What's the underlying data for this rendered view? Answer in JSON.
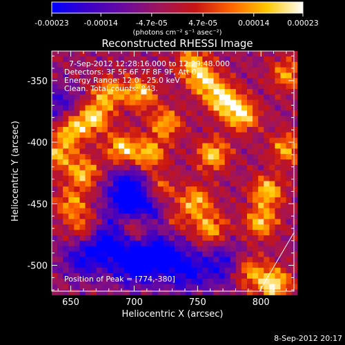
{
  "colorbar": {
    "tick_labels": [
      "-0.00023",
      "-0.00014",
      "-4.7e-05",
      "4.7e-05",
      "0.00014",
      "0.00023"
    ],
    "tick_values": [
      -0.00023,
      -0.00014,
      -4.7e-05,
      4.7e-05,
      0.00014,
      0.00023
    ],
    "range": [
      -0.00023,
      0.00023
    ],
    "units": "(photons cm⁻² s⁻¹ asec⁻²)",
    "colormap": [
      "#0000ff",
      "#3c00c8",
      "#6a0aa0",
      "#a0145a",
      "#c81414",
      "#ff6400",
      "#ffc800",
      "#ffffff"
    ]
  },
  "plot": {
    "title": "Reconstructed RHESSI Image",
    "xlabel": "Heliocentric X (arcsec)",
    "ylabel": "Heliocentric Y (arcsec)",
    "xlim": [
      635,
      826
    ],
    "ylim": [
      -521,
      -326
    ],
    "xticks": [
      650,
      700,
      750,
      800
    ],
    "yticks": [
      -350,
      -400,
      -450,
      -500
    ]
  },
  "annotations": {
    "time_range": "7-Sep-2012 12:28:16.000 to 12:29:48.000",
    "detectors": "Detectors: 3F 5F 6F 7F 8F 9F, Att 0",
    "energy": "Energy Range: 12.0 - 25.0 keV",
    "clean": "Clean.   Total counts: 843.",
    "peak": "Position of Peak = [774,-380]"
  },
  "footer": {
    "timestamp": "8-Sep-2012 20:17"
  },
  "chart_data": {
    "type": "heatmap",
    "title": "Reconstructed RHESSI Image",
    "xlabel": "Heliocentric X (arcsec)",
    "ylabel": "Heliocentric Y (arcsec)",
    "xlim": [
      635,
      826
    ],
    "ylim": [
      -521,
      -326
    ],
    "peak": [
      774,
      -380
    ],
    "value_range": [
      -0.00023,
      0.00023
    ],
    "hot_regions": [
      {
        "x": 770,
        "y": -365,
        "level": 1.0
      },
      {
        "x": 785,
        "y": -378,
        "level": 0.95
      },
      {
        "x": 762,
        "y": -410,
        "level": 0.85
      },
      {
        "x": 755,
        "y": -350,
        "level": 0.8
      },
      {
        "x": 668,
        "y": -380,
        "level": 0.9
      },
      {
        "x": 650,
        "y": -390,
        "level": 0.85
      },
      {
        "x": 705,
        "y": -360,
        "level": 0.8
      },
      {
        "x": 680,
        "y": -360,
        "level": 0.75
      },
      {
        "x": 690,
        "y": -405,
        "level": 0.85
      },
      {
        "x": 712,
        "y": -410,
        "level": 0.8
      },
      {
        "x": 660,
        "y": -425,
        "level": 0.8
      },
      {
        "x": 640,
        "y": -410,
        "level": 0.7
      },
      {
        "x": 725,
        "y": -385,
        "level": 0.75
      },
      {
        "x": 720,
        "y": -440,
        "level": 0.75
      },
      {
        "x": 805,
        "y": -440,
        "level": 0.85
      },
      {
        "x": 820,
        "y": -405,
        "level": 0.7
      },
      {
        "x": 800,
        "y": -465,
        "level": 0.8
      },
      {
        "x": 748,
        "y": -448,
        "level": 0.8
      },
      {
        "x": 760,
        "y": -470,
        "level": 0.75
      },
      {
        "x": 730,
        "y": -462,
        "level": 0.6
      },
      {
        "x": 700,
        "y": -468,
        "level": 0.6
      },
      {
        "x": 650,
        "y": -450,
        "level": 0.65
      },
      {
        "x": 660,
        "y": -470,
        "level": 0.55
      },
      {
        "x": 810,
        "y": -515,
        "level": 1.0
      },
      {
        "x": 790,
        "y": -505,
        "level": 0.7
      },
      {
        "x": 745,
        "y": -335,
        "level": 0.7
      },
      {
        "x": 820,
        "y": -345,
        "level": 0.65
      }
    ],
    "cold_regions": [
      {
        "x": 700,
        "y": -500,
        "level": -0.9
      },
      {
        "x": 680,
        "y": -480,
        "level": -0.8
      },
      {
        "x": 720,
        "y": -490,
        "level": -0.75
      },
      {
        "x": 660,
        "y": -495,
        "level": -0.65
      },
      {
        "x": 740,
        "y": -505,
        "level": -0.7
      },
      {
        "x": 698,
        "y": -450,
        "level": -0.75
      },
      {
        "x": 720,
        "y": -455,
        "level": -0.6
      },
      {
        "x": 770,
        "y": -500,
        "level": -0.6
      },
      {
        "x": 640,
        "y": -370,
        "level": -0.5
      },
      {
        "x": 695,
        "y": -435,
        "level": -0.6
      }
    ]
  }
}
